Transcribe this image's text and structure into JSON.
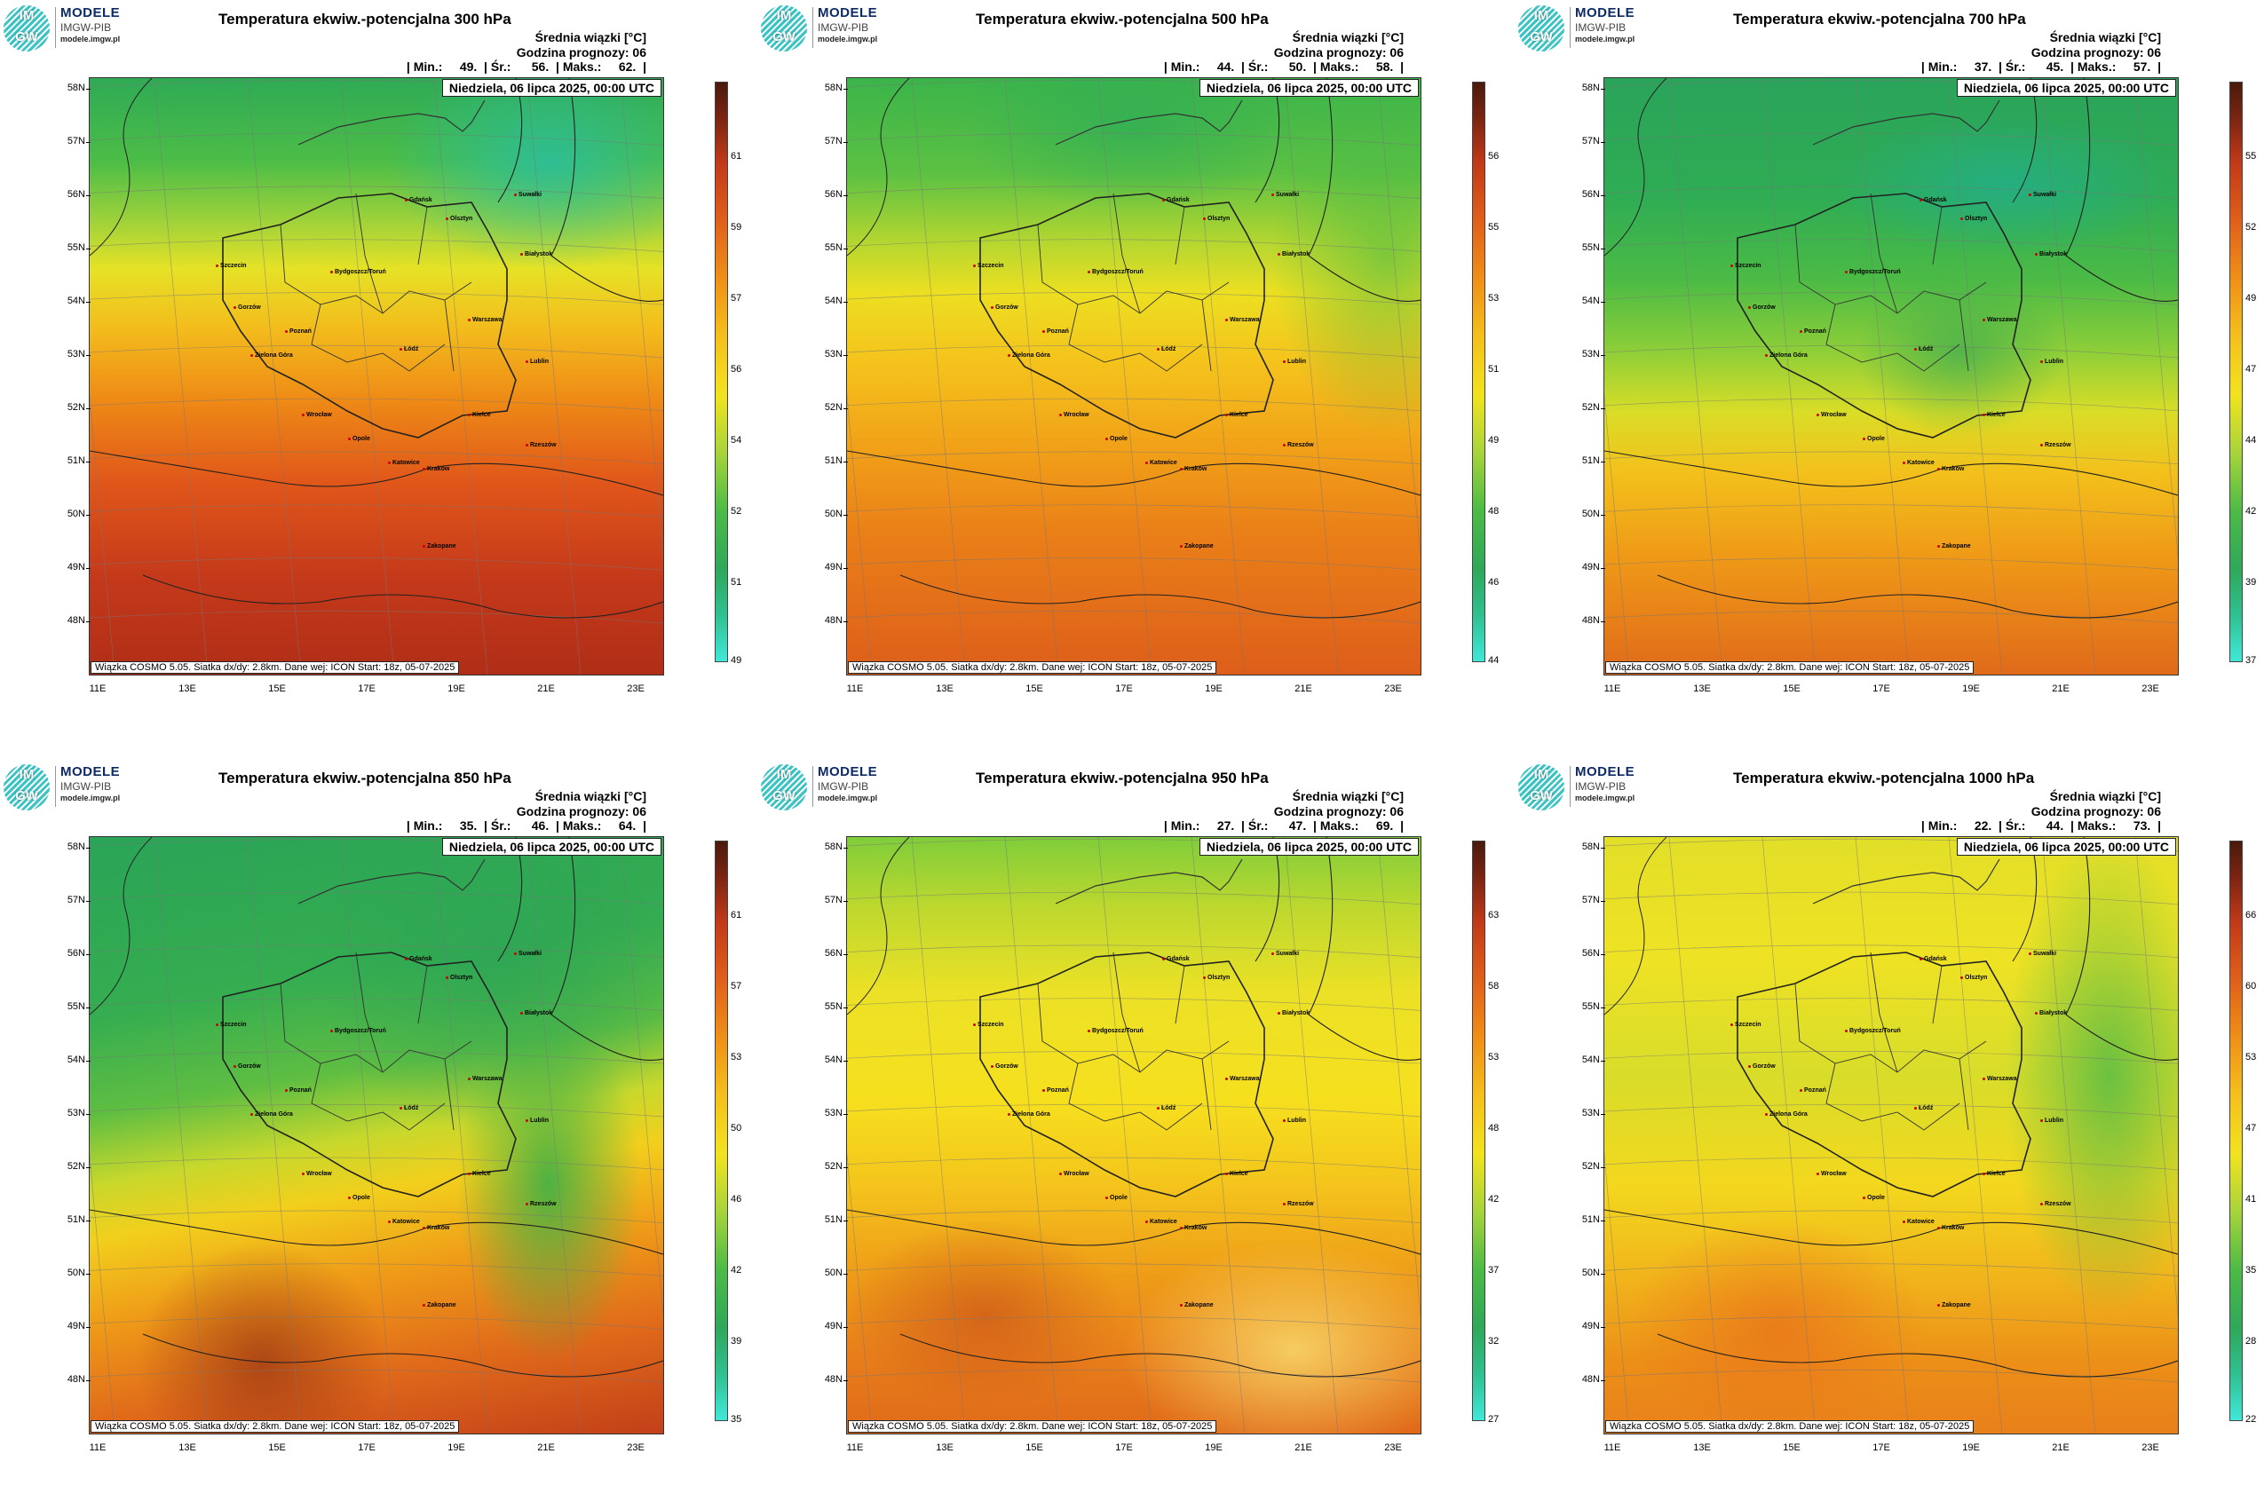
{
  "logo": {
    "letters_top": "IM",
    "letters_bottom": "GW",
    "line1": "MODELE",
    "line2": "IMGW-PIB",
    "line3": "modele.imgw.pl"
  },
  "common": {
    "header_line1": "Średnia wiązki [°C]",
    "header_line2": "Godzina prognozy: 06",
    "date": "Niedziela, 06 lipca 2025, 00:00 UTC",
    "info": "Wiązka COSMO 5.05. Siatka dx/dy: 2.8km. Dane wej: ICON Start: 18z, 05-07-2025",
    "lat_labels": [
      "58N",
      "57N",
      "56N",
      "55N",
      "54N",
      "53N",
      "52N",
      "51N",
      "50N",
      "49N",
      "48N"
    ],
    "lon_labels": [
      "11E",
      "13E",
      "15E",
      "17E",
      "19E",
      "21E",
      "23E"
    ],
    "cities": [
      "Gdańsk",
      "Olsztyn",
      "Suwałki",
      "Szczecin",
      "Białystok",
      "Bydgoszcz/Toruń",
      "Gorzów",
      "Poznań",
      "Warszawa",
      "Łódź",
      "Zielona Góra",
      "Lublin",
      "Wrocław",
      "Kielce",
      "Opole",
      "Rzeszów",
      "Katowice",
      "Kraków",
      "Zakopane"
    ]
  },
  "colors": {
    "low": "#40e0d0",
    "mid_green": "#3cb44b",
    "yellow": "#f5e51b",
    "orange": "#f39c12",
    "red": "#c0392b",
    "dark": "#5a1e10"
  },
  "panels": [
    {
      "title": "Temperatura ekwiw.-potencjalna 300 hPa",
      "stats": "| Min.:     49.  | Śr.:      56.  | Maks.:     62.  |",
      "min": 49,
      "avg": 56,
      "max": 62,
      "colorbar_ticks": [
        "61",
        "59",
        "57",
        "56",
        "54",
        "52",
        "51",
        "49"
      ]
    },
    {
      "title": "Temperatura ekwiw.-potencjalna 500 hPa",
      "stats": "| Min.:     44.  | Śr.:      50.  | Maks.:     58.  |",
      "min": 44,
      "avg": 50,
      "max": 58,
      "colorbar_ticks": [
        "56",
        "55",
        "53",
        "51",
        "49",
        "48",
        "46",
        "44"
      ]
    },
    {
      "title": "Temperatura ekwiw.-potencjalna 700 hPa",
      "stats": "| Min.:     37.  | Śr.:      45.  | Maks.:     57.  |",
      "min": 37,
      "avg": 45,
      "max": 57,
      "colorbar_ticks": [
        "55",
        "52",
        "49",
        "47",
        "44",
        "42",
        "39",
        "37"
      ]
    },
    {
      "title": "Temperatura ekwiw.-potencjalna 850 hPa",
      "stats": "| Min.:     35.  | Śr.:      46.  | Maks.:     64.  |",
      "min": 35,
      "avg": 46,
      "max": 64,
      "colorbar_ticks": [
        "61",
        "57",
        "53",
        "50",
        "46",
        "42",
        "39",
        "35"
      ]
    },
    {
      "title": "Temperatura ekwiw.-potencjalna 950 hPa",
      "stats": "| Min.:     27.  | Śr.:      47.  | Maks.:     69.  |",
      "min": 27,
      "avg": 47,
      "max": 69,
      "colorbar_ticks": [
        "63",
        "58",
        "53",
        "48",
        "42",
        "37",
        "32",
        "27"
      ]
    },
    {
      "title": "Temperatura ekwiw.-potencjalna 1000 hPa",
      "stats": "| Min.:     22.  | Śr.:      44.  | Maks.:     73.  |",
      "min": 22,
      "avg": 44,
      "max": 73,
      "colorbar_ticks": [
        "66",
        "60",
        "53",
        "47",
        "41",
        "35",
        "28",
        "22"
      ]
    }
  ]
}
